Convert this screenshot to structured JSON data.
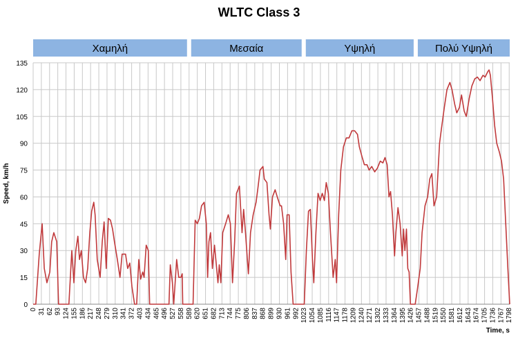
{
  "chart_data": {
    "type": "line",
    "title": "WLTC Class 3",
    "x_label": "Time, s",
    "y_label": "Speed, km/h",
    "phases": [
      {
        "name": "Χαμηλή",
        "start": 0,
        "end": 589
      },
      {
        "name": "Μεσαία",
        "start": 589,
        "end": 1022
      },
      {
        "name": "Υψηλή",
        "start": 1022,
        "end": 1445
      },
      {
        "name": "Πολύ Υψηλή",
        "start": 1445,
        "end": 1800
      }
    ],
    "phase_color": "#8db4e2",
    "color": "#c0393b",
    "grid": true,
    "xlim": [
      0,
      1800
    ],
    "ylim": [
      0,
      135
    ],
    "yticks": [
      0,
      15,
      30,
      45,
      60,
      75,
      90,
      105,
      120,
      135
    ],
    "xticks": [
      0,
      31,
      62,
      93,
      124,
      155,
      186,
      217,
      248,
      279,
      310,
      341,
      372,
      403,
      434,
      465,
      496,
      527,
      558,
      589,
      620,
      651,
      682,
      713,
      744,
      775,
      806,
      837,
      868,
      899,
      930,
      961,
      992,
      1023,
      1054,
      1085,
      1116,
      1147,
      1178,
      1209,
      1240,
      1271,
      1302,
      1333,
      1364,
      1395,
      1426,
      1457,
      1488,
      1519,
      1550,
      1581,
      1612,
      1643,
      1674,
      1705,
      1736,
      1767,
      1798
    ],
    "x": [
      0,
      10,
      23,
      34,
      42,
      52,
      63,
      70,
      78,
      89,
      96,
      135,
      146,
      154,
      161,
      169,
      175,
      182,
      190,
      198,
      206,
      214,
      221,
      229,
      234,
      242,
      253,
      261,
      268,
      276,
      284,
      292,
      300,
      307,
      318,
      328,
      336,
      349,
      357,
      365,
      373,
      383,
      391,
      399,
      406,
      414,
      419,
      427,
      435,
      440,
      513,
      518,
      526,
      531,
      542,
      550,
      558,
      563,
      565,
      604,
      612,
      620,
      628,
      636,
      646,
      654,
      659,
      664,
      670,
      677,
      685,
      690,
      698,
      703,
      709,
      716,
      727,
      737,
      745,
      753,
      761,
      768,
      779,
      789,
      795,
      802,
      813,
      821,
      831,
      842,
      849,
      857,
      868,
      873,
      883,
      891,
      896,
      904,
      914,
      922,
      933,
      938,
      946,
      954,
      959,
      967,
      974,
      982,
      1024,
      1032,
      1040,
      1047,
      1055,
      1060,
      1068,
      1076,
      1084,
      1092,
      1100,
      1107,
      1115,
      1123,
      1133,
      1141,
      1146,
      1154,
      1162,
      1172,
      1183,
      1193,
      1204,
      1214,
      1225,
      1232,
      1243,
      1251,
      1261,
      1269,
      1279,
      1290,
      1300,
      1311,
      1321,
      1329,
      1337,
      1344,
      1350,
      1357,
      1365,
      1370,
      1378,
      1386,
      1394,
      1399,
      1404,
      1410,
      1415,
      1420,
      1425,
      1443,
      1451,
      1462,
      1469,
      1480,
      1490,
      1498,
      1506,
      1514,
      1524,
      1535,
      1542,
      1553,
      1563,
      1574,
      1582,
      1592,
      1600,
      1610,
      1618,
      1628,
      1636,
      1647,
      1657,
      1668,
      1678,
      1688,
      1699,
      1707,
      1717,
      1722,
      1727,
      1735,
      1743,
      1751,
      1761,
      1769,
      1777,
      1785,
      1793,
      1800
    ],
    "values": [
      0,
      0,
      28,
      45,
      20,
      12,
      18,
      35,
      40,
      35,
      0,
      0,
      30,
      12,
      30,
      38,
      25,
      30,
      15,
      12,
      20,
      40,
      52,
      57,
      50,
      25,
      15,
      35,
      46,
      20,
      48,
      47,
      42,
      35,
      25,
      15,
      28,
      28,
      20,
      23,
      10,
      0,
      0,
      25,
      14,
      18,
      15,
      33,
      30,
      0,
      0,
      22,
      12,
      0,
      25,
      15,
      15,
      17,
      0,
      0,
      47,
      45,
      48,
      55,
      57,
      45,
      15,
      35,
      40,
      20,
      33,
      25,
      12,
      22,
      12,
      40,
      45,
      50,
      45,
      12,
      35,
      62,
      66,
      40,
      53,
      40,
      17,
      40,
      50,
      57,
      65,
      75,
      77,
      70,
      68,
      50,
      42,
      60,
      64,
      60,
      55,
      55,
      45,
      25,
      50,
      50,
      18,
      0,
      0,
      30,
      52,
      53,
      25,
      12,
      40,
      62,
      58,
      62,
      58,
      68,
      62,
      40,
      15,
      25,
      12,
      50,
      75,
      88,
      93,
      93,
      97,
      97,
      95,
      88,
      82,
      78,
      78,
      75,
      77,
      74,
      76,
      80,
      79,
      82,
      78,
      60,
      63,
      50,
      27,
      40,
      54,
      45,
      27,
      42,
      30,
      42,
      20,
      18,
      0,
      0,
      8,
      20,
      40,
      55,
      60,
      70,
      73,
      55,
      60,
      90,
      98,
      110,
      120,
      124,
      120,
      112,
      107,
      110,
      117,
      108,
      105,
      115,
      122,
      126,
      127,
      125,
      128,
      127,
      130,
      131,
      128,
      115,
      100,
      90,
      85,
      80,
      70,
      45,
      20,
      0
    ]
  }
}
